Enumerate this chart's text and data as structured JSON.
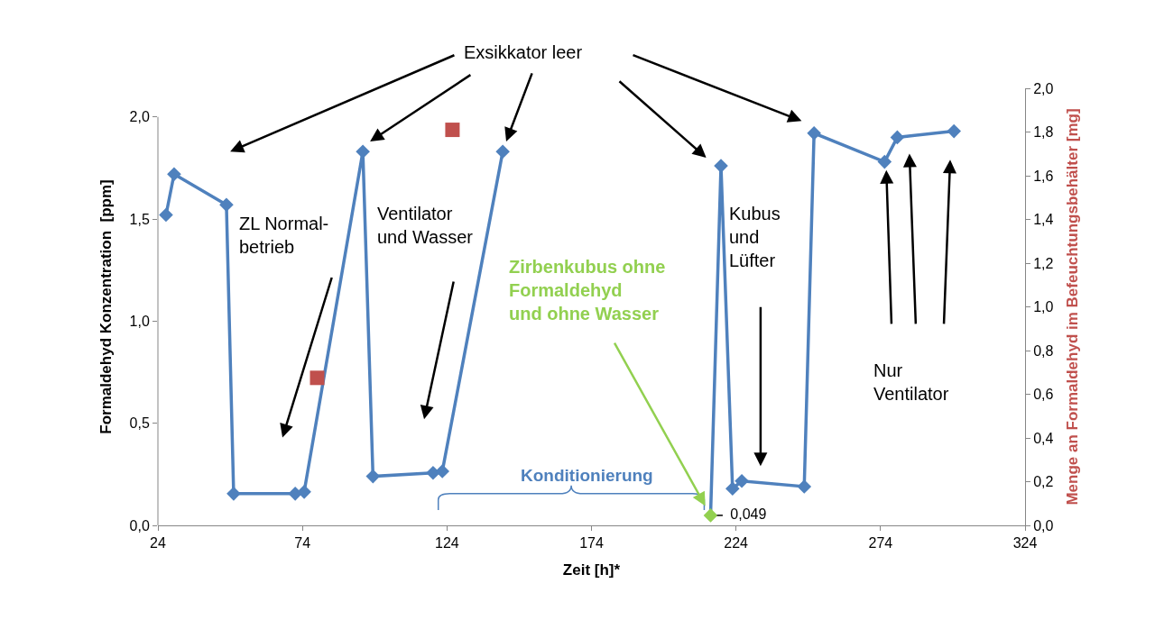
{
  "chart_data": {
    "type": "line",
    "xlabel": "Zeit [h]*",
    "ylabel": "Formaldehyd Konzentration  [ppm]",
    "y2label": "Menge an Formaldehyd im Befeuchtungsbehälter [mg]",
    "xlim": [
      24,
      324
    ],
    "xticks": [
      24,
      74,
      124,
      174,
      224,
      274,
      324
    ],
    "ylim": [
      0,
      2.14
    ],
    "yticks": [
      {
        "value": 0,
        "label": "0,0"
      },
      {
        "value": 0.5,
        "label": "0,5"
      },
      {
        "value": 1,
        "label": "1,0"
      },
      {
        "value": 1.5,
        "label": "1,5"
      },
      {
        "value": 2,
        "label": "2,0"
      }
    ],
    "y2lim": [
      0,
      2.0
    ],
    "y2ticks": [
      {
        "value": 0,
        "label": "0,0"
      },
      {
        "value": 0.2,
        "label": "0,2"
      },
      {
        "value": 0.4,
        "label": "0,4"
      },
      {
        "value": 0.6,
        "label": "0,6"
      },
      {
        "value": 0.8,
        "label": "0,8"
      },
      {
        "value": 1.0,
        "label": "1,0"
      },
      {
        "value": 1.2,
        "label": "1,2"
      },
      {
        "value": 1.4,
        "label": "1,4"
      },
      {
        "value": 1.6,
        "label": "1,6"
      },
      {
        "value": 1.8,
        "label": "1,8"
      },
      {
        "value": 2.0,
        "label": "2,0"
      }
    ],
    "series": [
      {
        "marker": "diamond",
        "color": "#4f81bd",
        "x": [
          26.8,
          29.6,
          47.7,
          50.2,
          71.5,
          74.6,
          94.9,
          98.4,
          119.2,
          122.4,
          143.3,
          null,
          215.2,
          218.8,
          222.8,
          226,
          247.6,
          251,
          275.4,
          279.8,
          299.4
        ],
        "values": [
          1.52,
          1.72,
          1.57,
          0.155,
          0.155,
          0.164,
          1.83,
          0.24,
          0.257,
          0.265,
          1.83,
          null,
          0.049,
          1.76,
          0.18,
          0.217,
          0.19,
          1.92,
          1.78,
          1.9,
          1.93
        ],
        "colors": [
          "#4f81bd",
          "#4f81bd",
          "#4f81bd",
          "#4f81bd",
          "#4f81bd",
          "#4f81bd",
          "#4f81bd",
          "#4f81bd",
          "#4f81bd",
          "#4f81bd",
          "#4f81bd",
          "#4f81bd",
          "#92d050",
          "#4f81bd",
          "#4f81bd",
          "#4f81bd",
          "#4f81bd",
          "#4f81bd",
          "#4f81bd",
          "#4f81bd",
          "#4f81bd"
        ],
        "value_labels": [
          null,
          null,
          null,
          null,
          null,
          null,
          null,
          null,
          null,
          null,
          null,
          null,
          "0,049",
          null,
          null,
          null,
          null,
          null,
          null,
          null,
          null
        ]
      },
      {
        "type": "scatter",
        "marker": "square",
        "color": "#c0504d",
        "axis": "y2",
        "x": [
          79.1,
          125.9
        ],
        "values": [
          0.675,
          1.81
        ]
      }
    ],
    "annotations": [
      "Exsikkator leer",
      "ZL Normal-\nbetrieb",
      "Ventilator\nund Wasser",
      {
        "text": "Zirbenkubus ohne\nFormaldehyd\nund ohne Wasser",
        "x": 215.2,
        "y": 0.049
      },
      "Kubus\nund\nLüfter",
      "Nur\nVentilator",
      "Konditionierung"
    ]
  }
}
